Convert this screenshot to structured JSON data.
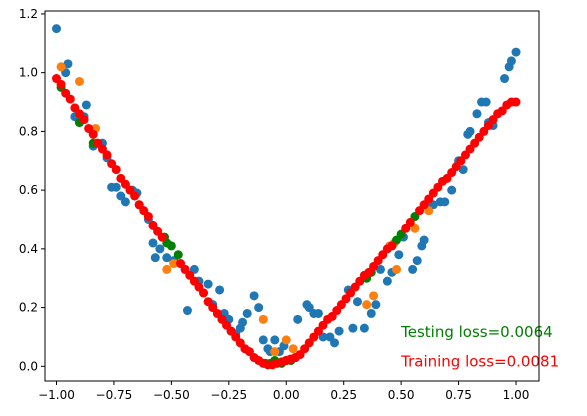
{
  "chart_data": {
    "type": "scatter",
    "title": "",
    "xlabel": "",
    "ylabel": "",
    "xlim": [
      -1.05,
      1.1
    ],
    "ylim": [
      -0.05,
      1.21
    ],
    "x_ticks": [
      -1.0,
      -0.75,
      -0.5,
      -0.25,
      0.0,
      0.25,
      0.5,
      0.75,
      1.0
    ],
    "x_tick_labels": [
      "−1.00",
      "−0.75",
      "−0.50",
      "−0.25",
      "0.00",
      "0.25",
      "0.50",
      "0.75",
      "1.00"
    ],
    "y_ticks": [
      0.0,
      0.2,
      0.4,
      0.6,
      0.8,
      1.0,
      1.2
    ],
    "y_tick_labels": [
      "0.0",
      "0.2",
      "0.4",
      "0.6",
      "0.8",
      "1.0",
      "1.2"
    ],
    "grid": false,
    "series": [
      {
        "color": "#1f77b4",
        "points": [
          [
            -1.0,
            1.15
          ],
          [
            -0.96,
            1.0
          ],
          [
            -0.95,
            1.03
          ],
          [
            -0.92,
            0.85
          ],
          [
            -0.88,
            0.85
          ],
          [
            -0.87,
            0.89
          ],
          [
            -0.84,
            0.75
          ],
          [
            -0.8,
            0.76
          ],
          [
            -0.78,
            0.71
          ],
          [
            -0.76,
            0.61
          ],
          [
            -0.74,
            0.61
          ],
          [
            -0.72,
            0.58
          ],
          [
            -0.7,
            0.56
          ],
          [
            -0.67,
            0.6
          ],
          [
            -0.65,
            0.59
          ],
          [
            -0.64,
            0.55
          ],
          [
            -0.6,
            0.5
          ],
          [
            -0.58,
            0.42
          ],
          [
            -0.57,
            0.37
          ],
          [
            -0.55,
            0.4
          ],
          [
            -0.52,
            0.37
          ],
          [
            -0.49,
            0.36
          ],
          [
            -0.44,
            0.33
          ],
          [
            -0.43,
            0.19
          ],
          [
            -0.4,
            0.33
          ],
          [
            -0.38,
            0.29
          ],
          [
            -0.36,
            0.25
          ],
          [
            -0.34,
            0.28
          ],
          [
            -0.32,
            0.21
          ],
          [
            -0.29,
            0.26
          ],
          [
            -0.27,
            0.18
          ],
          [
            -0.25,
            0.16
          ],
          [
            -0.24,
            0.12
          ],
          [
            -0.22,
            0.11
          ],
          [
            -0.2,
            0.13
          ],
          [
            -0.19,
            0.15
          ],
          [
            -0.17,
            0.18
          ],
          [
            -0.14,
            0.24
          ],
          [
            -0.12,
            0.2
          ],
          [
            -0.1,
            0.09
          ],
          [
            -0.08,
            0.06
          ],
          [
            -0.07,
            0.05
          ],
          [
            -0.05,
            0.09
          ],
          [
            -0.03,
            0.05
          ],
          [
            -0.01,
            0.07
          ],
          [
            0.0,
            0.02
          ],
          [
            0.02,
            0.02
          ],
          [
            0.04,
            0.03
          ],
          [
            0.05,
            0.16
          ],
          [
            0.09,
            0.21
          ],
          [
            0.1,
            0.2
          ],
          [
            0.12,
            0.18
          ],
          [
            0.14,
            0.18
          ],
          [
            0.16,
            0.1
          ],
          [
            0.19,
            0.1
          ],
          [
            0.21,
            0.08
          ],
          [
            0.23,
            0.12
          ],
          [
            0.27,
            0.26
          ],
          [
            0.29,
            0.13
          ],
          [
            0.31,
            0.22
          ],
          [
            0.34,
            0.13
          ],
          [
            0.37,
            0.18
          ],
          [
            0.39,
            0.21
          ],
          [
            0.41,
            0.33
          ],
          [
            0.44,
            0.29
          ],
          [
            0.46,
            0.32
          ],
          [
            0.49,
            0.38
          ],
          [
            0.51,
            0.44
          ],
          [
            0.55,
            0.33
          ],
          [
            0.57,
            0.36
          ],
          [
            0.59,
            0.41
          ],
          [
            0.6,
            0.43
          ],
          [
            0.62,
            0.54
          ],
          [
            0.64,
            0.55
          ],
          [
            0.67,
            0.56
          ],
          [
            0.69,
            0.56
          ],
          [
            0.72,
            0.6
          ],
          [
            0.75,
            0.7
          ],
          [
            0.77,
            0.67
          ],
          [
            0.79,
            0.79
          ],
          [
            0.8,
            0.8
          ],
          [
            0.83,
            0.86
          ],
          [
            0.85,
            0.9
          ],
          [
            0.87,
            0.9
          ],
          [
            0.88,
            0.83
          ],
          [
            0.9,
            0.82
          ],
          [
            0.95,
            0.98
          ],
          [
            0.97,
            1.02
          ],
          [
            0.98,
            1.04
          ],
          [
            1.0,
            1.07
          ]
        ]
      },
      {
        "color": "#ff7f0e",
        "points": [
          [
            -0.98,
            1.02
          ],
          [
            -0.9,
            0.97
          ],
          [
            -0.83,
            0.81
          ],
          [
            -0.52,
            0.33
          ],
          [
            -0.49,
            0.35
          ],
          [
            -0.1,
            0.16
          ],
          [
            -0.05,
            0.05
          ],
          [
            0.0,
            0.09
          ],
          [
            0.03,
            0.06
          ],
          [
            0.35,
            0.21
          ],
          [
            0.38,
            0.24
          ],
          [
            0.45,
            0.41
          ],
          [
            0.47,
            0.42
          ],
          [
            0.48,
            0.33
          ],
          [
            0.56,
            0.47
          ],
          [
            0.62,
            0.53
          ]
        ]
      },
      {
        "color": "#008000",
        "points": [
          [
            -0.98,
            0.95
          ],
          [
            -0.9,
            0.83
          ],
          [
            -0.84,
            0.76
          ],
          [
            -0.53,
            0.44
          ],
          [
            -0.52,
            0.42
          ],
          [
            -0.5,
            0.41
          ],
          [
            -0.47,
            0.38
          ],
          [
            -0.09,
            0.01
          ],
          [
            -0.07,
            0.01
          ],
          [
            -0.05,
            0.02
          ],
          [
            -0.02,
            0.01
          ],
          [
            0.0,
            0.02
          ],
          [
            0.02,
            0.02
          ],
          [
            0.35,
            0.3
          ],
          [
            0.37,
            0.32
          ],
          [
            0.48,
            0.43
          ],
          [
            0.5,
            0.45
          ],
          [
            0.56,
            0.51
          ]
        ]
      },
      {
        "color": "#ff0000",
        "points": [
          [
            -1.0,
            0.98
          ],
          [
            -0.98,
            0.96
          ],
          [
            -0.96,
            0.93
          ],
          [
            -0.94,
            0.91
          ],
          [
            -0.92,
            0.88
          ],
          [
            -0.9,
            0.86
          ],
          [
            -0.88,
            0.84
          ],
          [
            -0.86,
            0.81
          ],
          [
            -0.84,
            0.79
          ],
          [
            -0.82,
            0.76
          ],
          [
            -0.8,
            0.74
          ],
          [
            -0.78,
            0.72
          ],
          [
            -0.76,
            0.69
          ],
          [
            -0.74,
            0.67
          ],
          [
            -0.72,
            0.64
          ],
          [
            -0.7,
            0.62
          ],
          [
            -0.68,
            0.6
          ],
          [
            -0.66,
            0.58
          ],
          [
            -0.64,
            0.55
          ],
          [
            -0.62,
            0.53
          ],
          [
            -0.6,
            0.51
          ],
          [
            -0.58,
            0.48
          ],
          [
            -0.56,
            0.46
          ],
          [
            -0.54,
            0.44
          ],
          [
            -0.46,
            0.35
          ],
          [
            -0.44,
            0.33
          ],
          [
            -0.42,
            0.31
          ],
          [
            -0.4,
            0.29
          ],
          [
            -0.38,
            0.27
          ],
          [
            -0.36,
            0.25
          ],
          [
            -0.34,
            0.22
          ],
          [
            -0.32,
            0.2
          ],
          [
            -0.3,
            0.18
          ],
          [
            -0.28,
            0.16
          ],
          [
            -0.26,
            0.14
          ],
          [
            -0.24,
            0.12
          ],
          [
            -0.22,
            0.1
          ],
          [
            -0.2,
            0.08
          ],
          [
            -0.18,
            0.06
          ],
          [
            -0.16,
            0.05
          ],
          [
            -0.14,
            0.03
          ],
          [
            -0.12,
            0.02
          ],
          [
            -0.1,
            0.01
          ],
          [
            -0.08,
            0.005
          ],
          [
            -0.06,
            0.005
          ],
          [
            -0.04,
            0.01
          ],
          [
            -0.02,
            0.015
          ],
          [
            0.0,
            0.02
          ],
          [
            0.02,
            0.025
          ],
          [
            0.04,
            0.03
          ],
          [
            0.06,
            0.04
          ],
          [
            0.08,
            0.06
          ],
          [
            0.1,
            0.08
          ],
          [
            0.12,
            0.1
          ],
          [
            0.14,
            0.12
          ],
          [
            0.16,
            0.14
          ],
          [
            0.18,
            0.16
          ],
          [
            0.2,
            0.17
          ],
          [
            0.22,
            0.19
          ],
          [
            0.24,
            0.21
          ],
          [
            0.26,
            0.23
          ],
          [
            0.28,
            0.25
          ],
          [
            0.3,
            0.27
          ],
          [
            0.32,
            0.29
          ],
          [
            0.34,
            0.31
          ],
          [
            0.36,
            0.32
          ],
          [
            0.38,
            0.34
          ],
          [
            0.4,
            0.36
          ],
          [
            0.42,
            0.38
          ],
          [
            0.44,
            0.4
          ],
          [
            0.46,
            0.41
          ],
          [
            0.52,
            0.47
          ],
          [
            0.54,
            0.49
          ],
          [
            0.58,
            0.53
          ],
          [
            0.6,
            0.55
          ],
          [
            0.62,
            0.57
          ],
          [
            0.64,
            0.59
          ],
          [
            0.66,
            0.61
          ],
          [
            0.68,
            0.63
          ],
          [
            0.7,
            0.64
          ],
          [
            0.72,
            0.66
          ],
          [
            0.74,
            0.68
          ],
          [
            0.76,
            0.7
          ],
          [
            0.78,
            0.72
          ],
          [
            0.8,
            0.74
          ],
          [
            0.82,
            0.76
          ],
          [
            0.84,
            0.78
          ],
          [
            0.86,
            0.8
          ],
          [
            0.88,
            0.82
          ],
          [
            0.9,
            0.84
          ],
          [
            0.92,
            0.86
          ],
          [
            0.94,
            0.87
          ],
          [
            0.96,
            0.89
          ],
          [
            0.98,
            0.9
          ],
          [
            1.0,
            0.9
          ]
        ]
      }
    ],
    "annotations": [
      {
        "text": "Testing loss=0.0064",
        "x": 0.5,
        "y": 0.1,
        "color": "#008000"
      },
      {
        "text": "Training loss=0.0081",
        "x": 0.5,
        "y": 0.0,
        "color": "#ff0000"
      }
    ]
  }
}
